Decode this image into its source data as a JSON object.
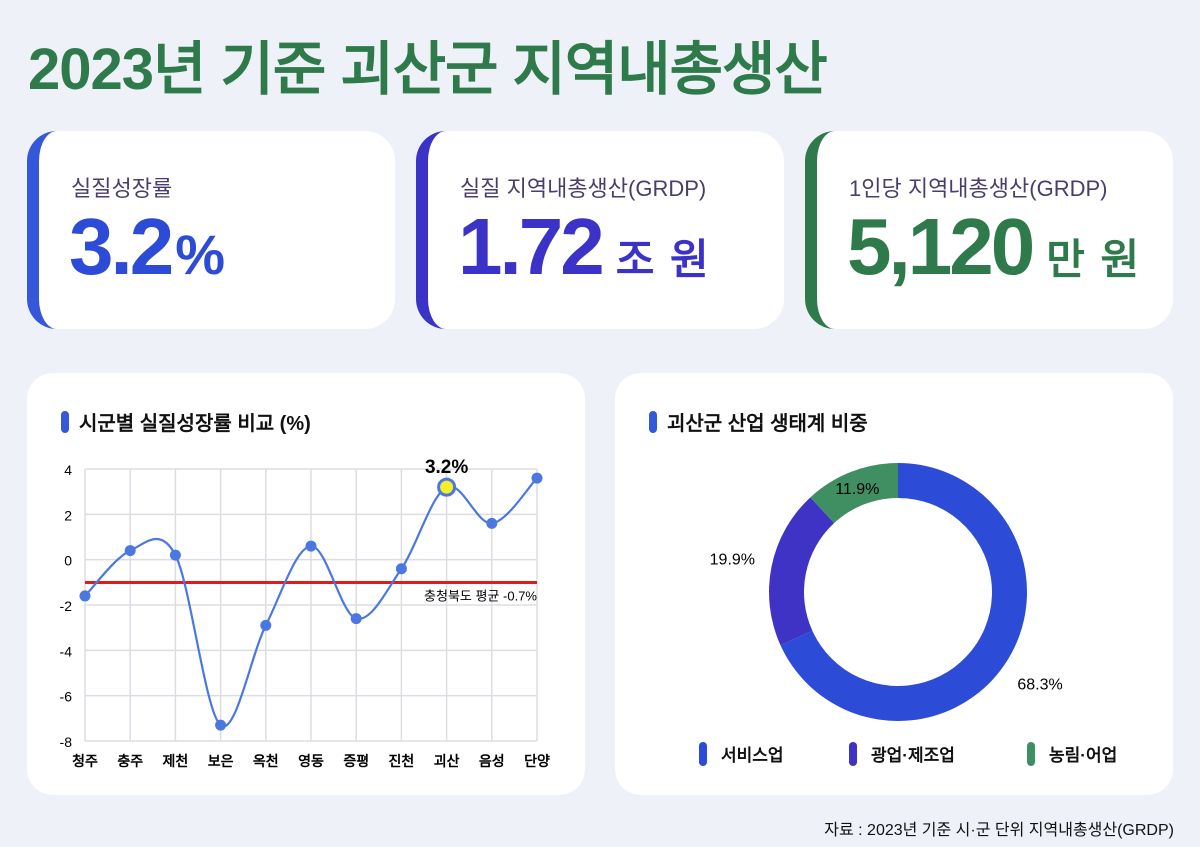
{
  "title": "2023년 기준 괴산군 지역내총생산",
  "cards": [
    {
      "label": "실질성장률",
      "value": "3.2",
      "unit": "%",
      "color": "#3557d9"
    },
    {
      "label": "실질 지역내총생산(GRDP)",
      "value": "1.72",
      "unit": "조 원",
      "color": "#3b32c8"
    },
    {
      "label": "1인당 지역내총생산(GRDP)",
      "value": "5,120",
      "unit": "만 원",
      "color": "#2e7a4a"
    }
  ],
  "chart_data": [
    {
      "type": "line",
      "title": "시군별 실질성장률 비교 (%)",
      "categories": [
        "청주",
        "충주",
        "제천",
        "보은",
        "옥천",
        "영동",
        "증평",
        "진천",
        "괴산",
        "음성",
        "단양"
      ],
      "values": [
        -1.6,
        0.4,
        0.2,
        -7.3,
        -2.9,
        0.6,
        -2.6,
        -0.4,
        3.2,
        1.6,
        3.6
      ],
      "ylim": [
        -8,
        4
      ],
      "yticks": [
        4,
        2,
        0,
        -2,
        -4,
        -6,
        -8
      ],
      "grid": true,
      "highlight": {
        "category": "괴산",
        "label": "3.2%"
      },
      "reference_line": {
        "value": -0.7,
        "label": "충청북도 평균 -0.7%",
        "color": "#e01b1b"
      },
      "line_color": "#4a78e0"
    },
    {
      "type": "pie",
      "title": "괴산군 산업 생태계 비중",
      "donut": true,
      "slices": [
        {
          "name": "서비스업",
          "value": 68.3,
          "label": "68.3%",
          "color": "#2c4bd6"
        },
        {
          "name": "광업·제조업",
          "value": 19.9,
          "label": "19.9%",
          "color": "#3f33c6"
        },
        {
          "name": "농림·어업",
          "value": 11.9,
          "label": "11.9%",
          "color": "#3f8f62"
        }
      ],
      "legend_placement": "bottom"
    }
  ],
  "source": "자료 : 2023년 기준 시·군 단위 지역내총생산(GRDP)"
}
